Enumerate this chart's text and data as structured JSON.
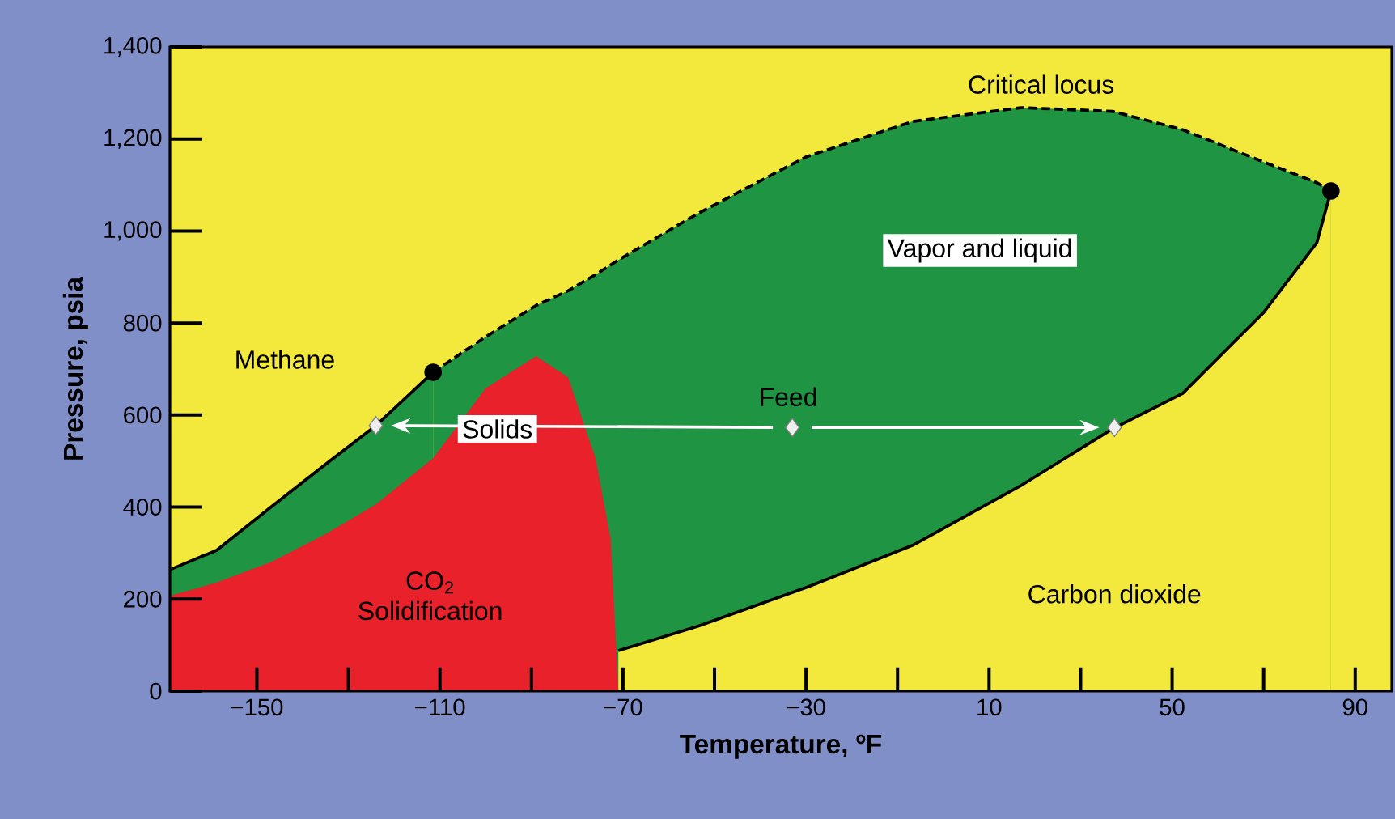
{
  "chart_data": {
    "type": "area",
    "xlabel": "Temperature, ºF",
    "ylabel": "Pressure, psia",
    "xlim": [
      -169,
      98
    ],
    "ylim": [
      0,
      1400
    ],
    "xticks": [
      {
        "value": -150,
        "label": "−150"
      },
      {
        "value": -130,
        "label": null
      },
      {
        "value": -110,
        "label": "−110"
      },
      {
        "value": -90,
        "label": null
      },
      {
        "value": -70,
        "label": "−70"
      },
      {
        "value": -50,
        "label": null
      },
      {
        "value": -30,
        "label": "−30"
      },
      {
        "value": -10,
        "label": null
      },
      10,
      {
        "value": 30,
        "label": null
      },
      50,
      {
        "value": 70,
        "label": null
      },
      90
    ],
    "yticks": [
      0,
      200,
      400,
      600,
      800,
      {
        "value": 1000,
        "label": "1,000"
      },
      {
        "value": 1200,
        "label": "1,200"
      },
      {
        "value": 1400,
        "label": "1,400"
      }
    ],
    "series": [
      {
        "color": "#1f9442",
        "x": [
          -169,
          -158.8,
          -146.8,
          -135,
          -124,
          -111.5
        ],
        "values": [
          264,
          306,
          401,
          493,
          577,
          693
        ]
      },
      {
        "color": "#1f9442",
        "line_style": "dashed",
        "x": [
          -111.5,
          -100,
          -89,
          -82,
          -76,
          -71,
          -53.6,
          -30,
          -6.7,
          17,
          37,
          52.3,
          70,
          81.6,
          84.7
        ],
        "values": [
          693,
          770,
          838,
          870,
          905,
          937,
          1038,
          1161,
          1238,
          1268,
          1260,
          1220,
          1150,
          1105,
          1087
        ]
      },
      {
        "color": "#f2e93c",
        "x": [
          -71,
          -53.6,
          -30,
          -6.7,
          17,
          37,
          52.3,
          70,
          81.6,
          84.7
        ],
        "values": [
          88,
          141,
          225,
          317,
          447,
          570,
          647,
          823,
          974,
          1087
        ]
      },
      {
        "color": "#e8212a",
        "line_style": "none",
        "x": [
          -169,
          -158.8,
          -146.8,
          -135,
          -124,
          -111.5,
          -100,
          -89,
          -82,
          -76,
          -72.7,
          -71
        ],
        "values": [
          207,
          236,
          281,
          341,
          406,
          506,
          658,
          728,
          682,
          506,
          331,
          0
        ]
      },
      {
        "type": "scatter",
        "color": "#000000",
        "marker": "circle",
        "x": [
          -111.5,
          84.7
        ],
        "values": [
          693,
          1087
        ]
      },
      {
        "type": "scatter",
        "color": "#eeeeee",
        "marker": "diamond",
        "x": [
          -124,
          -33,
          37.4
        ],
        "values": [
          577,
          573,
          573
        ]
      }
    ],
    "annotations": [
      "Critical locus",
      "Vapor and liquid",
      "Methane",
      "Feed",
      "Solids",
      "CO$_{2}$ Solidification",
      "Carbon dioxide"
    ]
  }
}
